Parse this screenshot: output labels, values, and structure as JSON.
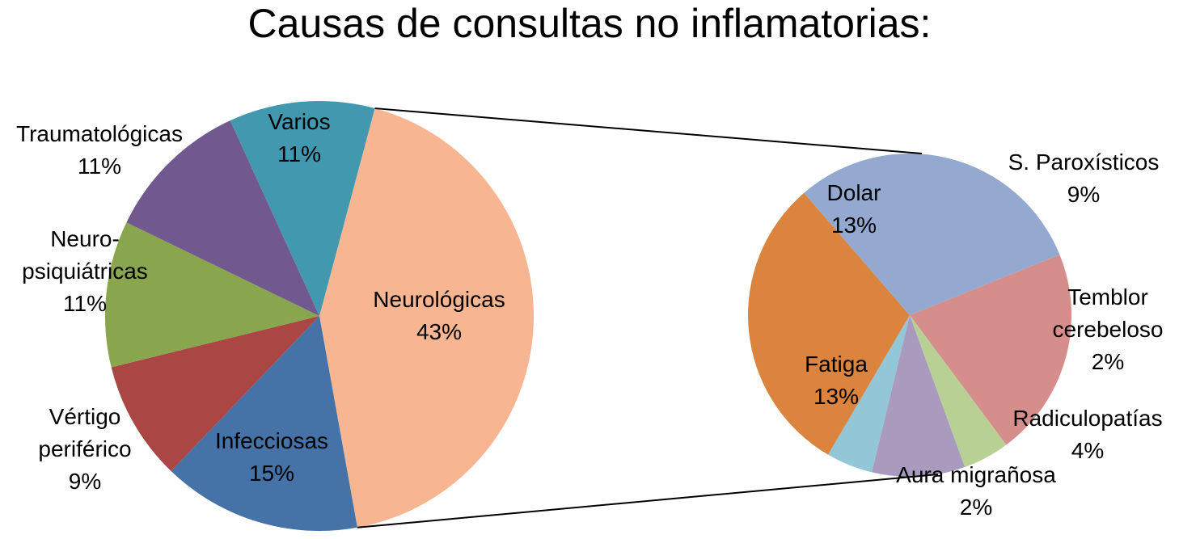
{
  "chart_data": [
    {
      "type": "pie",
      "title": "Causas de consultas no inflamatorias:",
      "slices": [
        {
          "label": "Neurológicas",
          "line_labels": [
            "Neurológicas"
          ],
          "percent_label": "43%",
          "value": 43,
          "color": "#F7B691"
        },
        {
          "label": "Infecciosas",
          "line_labels": [
            "Infecciosas"
          ],
          "percent_label": "15%",
          "value": 15,
          "color": "#4572A7"
        },
        {
          "label": "Vértigo periférico",
          "line_labels": [
            "Vértigo",
            "periférico"
          ],
          "percent_label": "9%",
          "value": 9,
          "color": "#AA4643"
        },
        {
          "label": "Neuro-psiquiátricas",
          "line_labels": [
            "Neuro-",
            "psiquiátricas"
          ],
          "percent_label": "11%",
          "value": 11,
          "color": "#89A54E"
        },
        {
          "label": "Traumatológicas",
          "line_labels": [
            "Traumatológicas"
          ],
          "percent_label": "11%",
          "value": 11,
          "color": "#71588F"
        },
        {
          "label": "Varios",
          "line_labels": [
            "Varios"
          ],
          "percent_label": "11%",
          "value": 11,
          "color": "#4198AF"
        }
      ]
    },
    {
      "type": "pie",
      "title": "",
      "slices": [
        {
          "label": "S. Paroxísticos",
          "line_labels": [
            "S. Paroxísticos"
          ],
          "percent_label": "9%",
          "value": 9,
          "color": "#D58E8C"
        },
        {
          "label": "Temblor cerebeloso",
          "line_labels": [
            "Temblor",
            "cerebeloso"
          ],
          "percent_label": "2%",
          "value": 2,
          "color": "#B9D095"
        },
        {
          "label": "Radiculopatías",
          "line_labels": [
            "Radiculopatías"
          ],
          "percent_label": "4%",
          "value": 4,
          "color": "#A89BBE"
        },
        {
          "label": "Aura migrañosa",
          "line_labels": [
            "Aura migrañosa"
          ],
          "percent_label": "2%",
          "value": 2,
          "color": "#93C6D6"
        },
        {
          "label": "Fatiga",
          "line_labels": [
            "Fatiga"
          ],
          "percent_label": "13%",
          "value": 13,
          "color": "#DB843D"
        },
        {
          "label": "Dolar",
          "line_labels": [
            "Dolar"
          ],
          "percent_label": "13%",
          "value": 13,
          "color": "#93A9CF"
        }
      ]
    }
  ]
}
